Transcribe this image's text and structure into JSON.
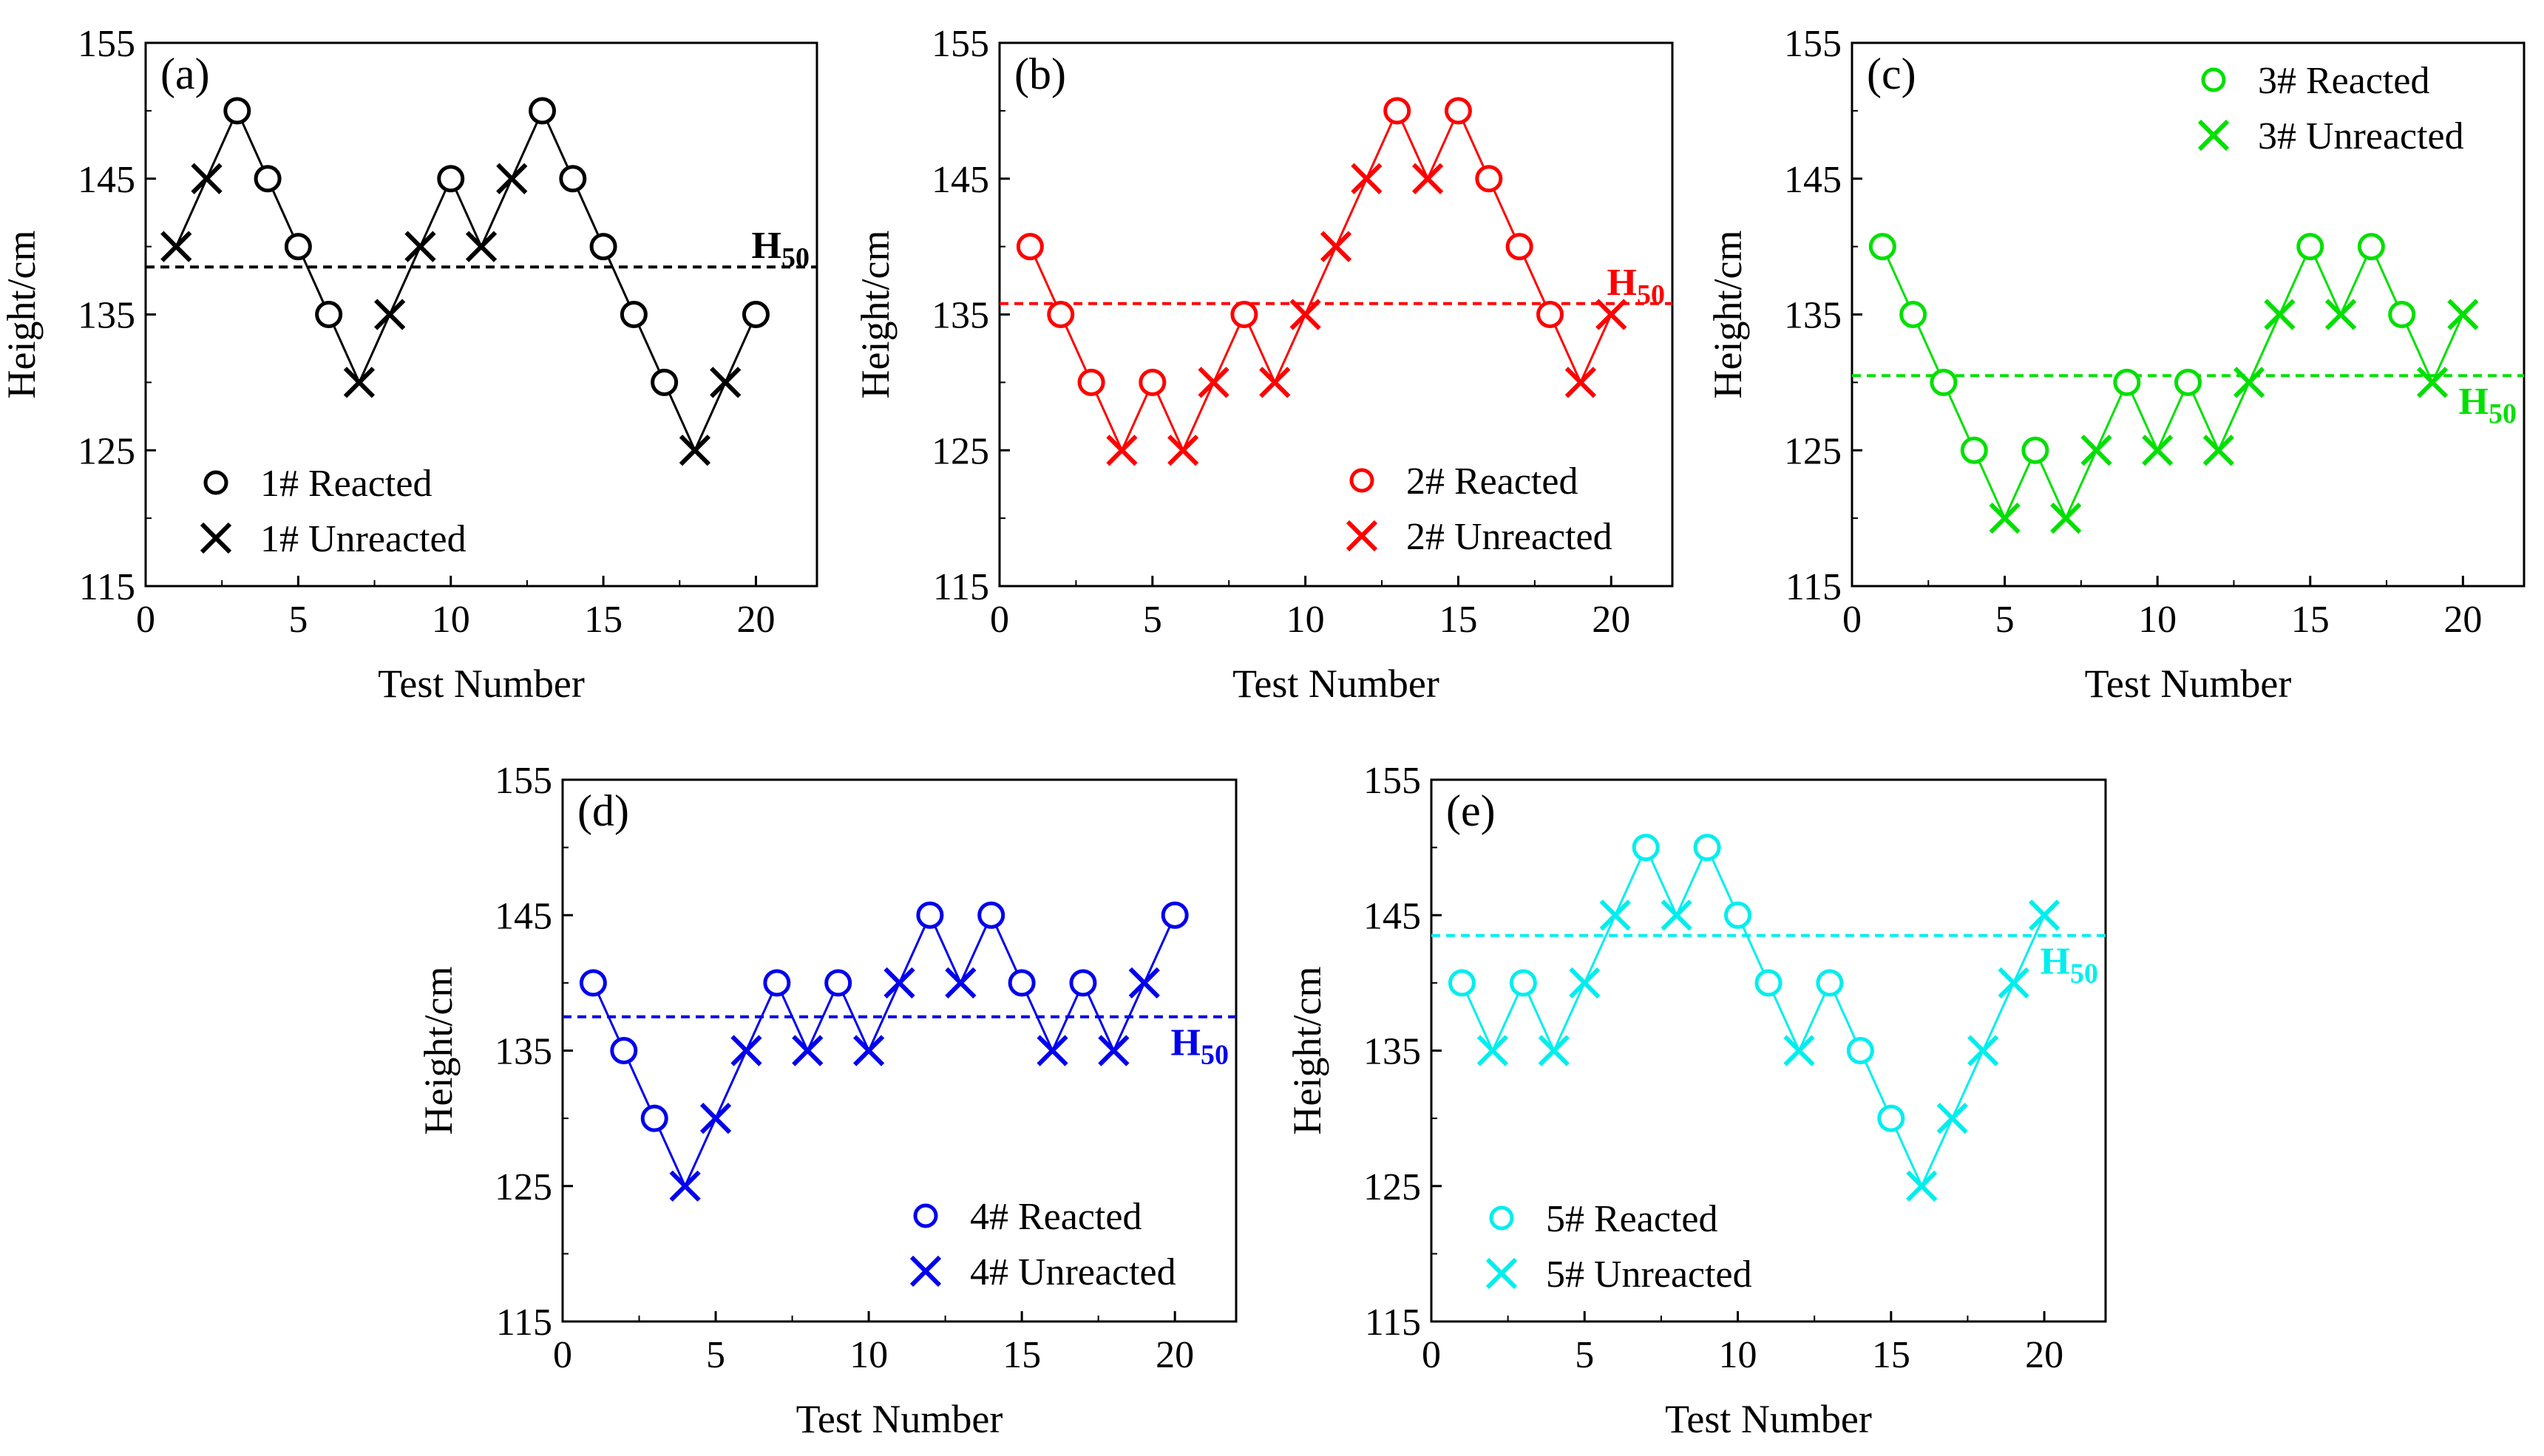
{
  "chart_data": [
    {
      "type": "line",
      "panel_label": "(a)",
      "color": "#000000",
      "xlabel": "Test Number",
      "ylabel": "Height/cm",
      "xlim": [
        0,
        22
      ],
      "ylim": [
        115,
        155
      ],
      "x_ticks": [
        0,
        5,
        10,
        15,
        20
      ],
      "y_ticks": [
        115,
        125,
        135,
        145,
        155
      ],
      "legend_position": "bottom-left",
      "legend": {
        "reacted": "1# Reacted",
        "unreacted": "1# Unreacted"
      },
      "x": [
        1,
        2,
        3,
        4,
        5,
        6,
        7,
        8,
        9,
        10,
        11,
        12,
        13,
        14,
        15,
        16,
        17,
        18,
        19,
        20
      ],
      "values": [
        140,
        145,
        150,
        145,
        140,
        135,
        130,
        135,
        140,
        145,
        140,
        145,
        150,
        145,
        140,
        135,
        130,
        125,
        130,
        135
      ],
      "outcome": [
        "U",
        "U",
        "R",
        "R",
        "R",
        "R",
        "U",
        "U",
        "U",
        "R",
        "U",
        "U",
        "R",
        "R",
        "R",
        "R",
        "R",
        "U",
        "U",
        "R"
      ],
      "h50": {
        "value": 138.5,
        "label": "H",
        "subscript": "50",
        "label_position": "above-right"
      }
    },
    {
      "type": "line",
      "panel_label": "(b)",
      "color": "#ff0000",
      "xlabel": "Test Number",
      "ylabel": "Height/cm",
      "xlim": [
        0,
        22
      ],
      "ylim": [
        115,
        155
      ],
      "x_ticks": [
        0,
        5,
        10,
        15,
        20
      ],
      "y_ticks": [
        115,
        125,
        135,
        145,
        155
      ],
      "legend_position": "bottom-right",
      "legend": {
        "reacted": "2# Reacted",
        "unreacted": "2# Unreacted"
      },
      "x": [
        1,
        2,
        3,
        4,
        5,
        6,
        7,
        8,
        9,
        10,
        11,
        12,
        13,
        14,
        15,
        16,
        17,
        18,
        19,
        20
      ],
      "values": [
        140,
        135,
        130,
        125,
        130,
        125,
        130,
        135,
        130,
        135,
        140,
        145,
        150,
        145,
        150,
        145,
        140,
        135,
        130,
        135
      ],
      "outcome": [
        "R",
        "R",
        "R",
        "U",
        "R",
        "U",
        "U",
        "R",
        "U",
        "U",
        "U",
        "U",
        "R",
        "U",
        "R",
        "R",
        "R",
        "R",
        "U",
        "U"
      ],
      "h50": {
        "value": 135.8,
        "label": "H",
        "subscript": "50",
        "label_position": "above-right"
      }
    },
    {
      "type": "line",
      "panel_label": "(c)",
      "color": "#00e000",
      "xlabel": "Test Number",
      "ylabel": "Height/cm",
      "xlim": [
        0,
        22
      ],
      "ylim": [
        115,
        155
      ],
      "x_ticks": [
        0,
        5,
        10,
        15,
        20
      ],
      "y_ticks": [
        115,
        125,
        135,
        145,
        155
      ],
      "legend_position": "top-right",
      "legend": {
        "reacted": "3# Reacted",
        "unreacted": "3# Unreacted"
      },
      "x": [
        1,
        2,
        3,
        4,
        5,
        6,
        7,
        8,
        9,
        10,
        11,
        12,
        13,
        14,
        15,
        16,
        17,
        18,
        19,
        20
      ],
      "values": [
        140,
        135,
        130,
        125,
        120,
        125,
        120,
        125,
        130,
        125,
        130,
        125,
        130,
        135,
        140,
        135,
        140,
        135,
        130,
        135
      ],
      "outcome": [
        "R",
        "R",
        "R",
        "R",
        "U",
        "R",
        "U",
        "U",
        "R",
        "U",
        "R",
        "U",
        "U",
        "U",
        "R",
        "U",
        "R",
        "R",
        "U",
        "U"
      ],
      "h50": {
        "value": 130.5,
        "label": "H",
        "subscript": "50",
        "label_position": "below-right"
      }
    },
    {
      "type": "line",
      "panel_label": "(d)",
      "color": "#0000ee",
      "xlabel": "Test Number",
      "ylabel": "Height/cm",
      "xlim": [
        0,
        22
      ],
      "ylim": [
        115,
        155
      ],
      "x_ticks": [
        0,
        5,
        10,
        15,
        20
      ],
      "y_ticks": [
        115,
        125,
        135,
        145,
        155
      ],
      "legend_position": "bottom-right",
      "legend": {
        "reacted": "4# Reacted",
        "unreacted": "4# Unreacted"
      },
      "x": [
        1,
        2,
        3,
        4,
        5,
        6,
        7,
        8,
        9,
        10,
        11,
        12,
        13,
        14,
        15,
        16,
        17,
        18,
        19,
        20
      ],
      "values": [
        140,
        135,
        130,
        125,
        130,
        135,
        140,
        135,
        140,
        135,
        140,
        145,
        140,
        145,
        140,
        135,
        140,
        135,
        140,
        145
      ],
      "outcome": [
        "R",
        "R",
        "R",
        "U",
        "U",
        "U",
        "R",
        "U",
        "R",
        "U",
        "U",
        "R",
        "U",
        "R",
        "R",
        "U",
        "R",
        "U",
        "U",
        "R"
      ],
      "h50": {
        "value": 137.5,
        "label": "H",
        "subscript": "50",
        "label_position": "below-right"
      }
    },
    {
      "type": "line",
      "panel_label": "(e)",
      "color": "#00eeee",
      "xlabel": "Test Number",
      "ylabel": "Height/cm",
      "xlim": [
        0,
        22
      ],
      "ylim": [
        115,
        155
      ],
      "x_ticks": [
        0,
        5,
        10,
        15,
        20
      ],
      "y_ticks": [
        115,
        125,
        135,
        145,
        155
      ],
      "legend_position": "bottom-left",
      "legend": {
        "reacted": "5# Reacted",
        "unreacted": "5# Unreacted"
      },
      "x": [
        1,
        2,
        3,
        4,
        5,
        6,
        7,
        8,
        9,
        10,
        11,
        12,
        13,
        14,
        15,
        16,
        17,
        18,
        19,
        20
      ],
      "values": [
        140,
        135,
        140,
        135,
        140,
        145,
        150,
        145,
        150,
        145,
        140,
        135,
        140,
        135,
        130,
        125,
        130,
        135,
        140,
        145
      ],
      "outcome": [
        "R",
        "U",
        "R",
        "U",
        "U",
        "U",
        "R",
        "U",
        "R",
        "R",
        "R",
        "U",
        "R",
        "R",
        "R",
        "U",
        "U",
        "U",
        "U",
        "U"
      ],
      "h50": {
        "value": 143.5,
        "label": "H",
        "subscript": "50",
        "label_position": "below-right"
      }
    }
  ]
}
